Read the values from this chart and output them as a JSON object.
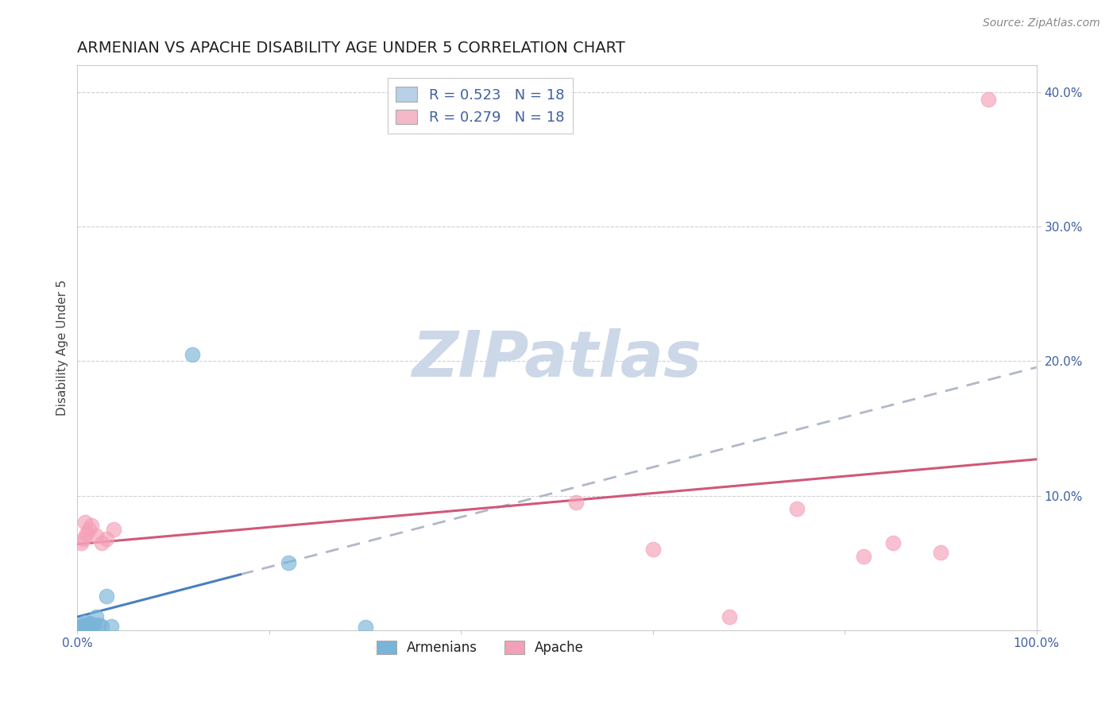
{
  "title": "ARMENIAN VS APACHE DISABILITY AGE UNDER 5 CORRELATION CHART",
  "source": "Source: ZipAtlas.com",
  "ylabel": "Disability Age Under 5",
  "xlim": [
    0.0,
    1.0
  ],
  "ylim": [
    0.0,
    0.42
  ],
  "xticks": [
    0.0,
    0.2,
    0.4,
    0.6,
    0.8,
    1.0
  ],
  "xticklabels_show": [
    "0.0%",
    "",
    "",
    "",
    "",
    "100.0%"
  ],
  "yticks": [
    0.0,
    0.1,
    0.2,
    0.3,
    0.4
  ],
  "yticklabels": [
    "",
    "10.0%",
    "20.0%",
    "30.0%",
    "40.0%"
  ],
  "legend_entries": [
    {
      "label": "R = 0.523   N = 18",
      "color": "#b8d0e8"
    },
    {
      "label": "R = 0.279   N = 18",
      "color": "#f4b8c8"
    }
  ],
  "legend_labels": [
    "Armenians",
    "Apache"
  ],
  "armenian_x": [
    0.003,
    0.005,
    0.007,
    0.008,
    0.009,
    0.01,
    0.012,
    0.013,
    0.015,
    0.017,
    0.02,
    0.022,
    0.025,
    0.03,
    0.035,
    0.12,
    0.22,
    0.3
  ],
  "armenian_y": [
    0.002,
    0.004,
    0.003,
    0.006,
    0.002,
    0.004,
    0.003,
    0.005,
    0.003,
    0.004,
    0.01,
    0.004,
    0.003,
    0.025,
    0.003,
    0.205,
    0.05,
    0.002
  ],
  "apache_x": [
    0.004,
    0.006,
    0.008,
    0.01,
    0.012,
    0.015,
    0.02,
    0.025,
    0.03,
    0.038,
    0.52,
    0.6,
    0.68,
    0.75,
    0.82,
    0.85,
    0.9,
    0.95
  ],
  "apache_y": [
    0.065,
    0.068,
    0.08,
    0.072,
    0.075,
    0.078,
    0.07,
    0.065,
    0.068,
    0.075,
    0.095,
    0.06,
    0.01,
    0.09,
    0.055,
    0.065,
    0.058,
    0.395
  ],
  "armenian_color": "#7ab4d8",
  "apache_color": "#f4a0b8",
  "armenian_line_color": "#4a7fc0",
  "apache_line_color": "#d05878",
  "dashed_line_color": "#b0b8c8",
  "background_color": "#ffffff",
  "grid_color": "#d0d0d8",
  "title_fontsize": 14,
  "axis_label_fontsize": 11,
  "tick_fontsize": 11,
  "source_fontsize": 10,
  "watermark_text": "ZIPatlas",
  "watermark_color": "#ccd8e8"
}
